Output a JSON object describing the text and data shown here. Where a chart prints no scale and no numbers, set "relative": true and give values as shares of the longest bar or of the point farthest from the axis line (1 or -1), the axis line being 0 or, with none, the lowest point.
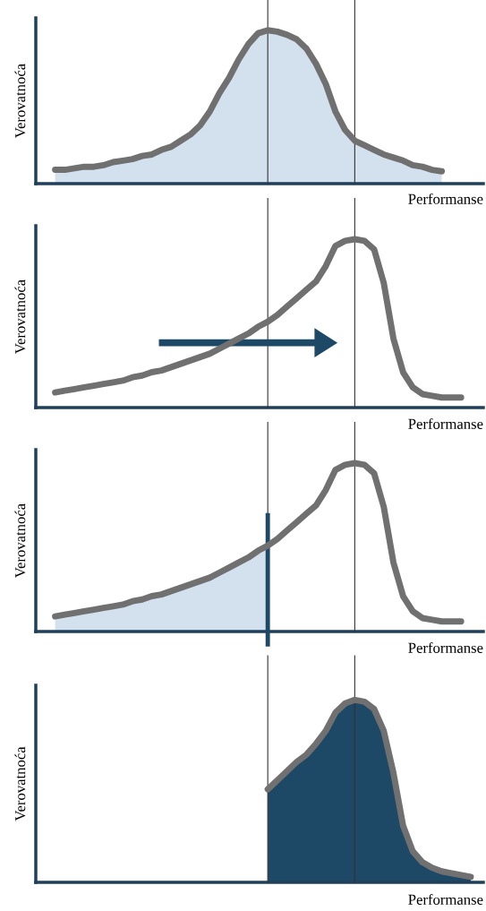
{
  "chart_data": [
    {
      "type": "line",
      "relative": true,
      "ylabel": "Verovatnoća",
      "xlabel": "Performanse",
      "categories": [
        null,
        null,
        null,
        null,
        null,
        null,
        null,
        null,
        null,
        null,
        null,
        null,
        null,
        null,
        null,
        null,
        null,
        null,
        null,
        null,
        null,
        null,
        null,
        null,
        null,
        null,
        null,
        null,
        null,
        null,
        null,
        null,
        null,
        null,
        null,
        null,
        null,
        null,
        null,
        null,
        null,
        null,
        null,
        null,
        null,
        null,
        null
      ],
      "series": [
        {
          "type": "area",
          "color": "#d3e0ee",
          "values": [
            null,
            null,
            0.09,
            0.09,
            0.1,
            0.11,
            0.11,
            0.12,
            0.14,
            0.15,
            0.16,
            0.18,
            0.19,
            0.22,
            0.24,
            0.28,
            0.32,
            0.38,
            0.47,
            0.59,
            0.69,
            0.81,
            0.91,
            0.98,
            1,
            0.99,
            0.97,
            0.94,
            0.88,
            0.78,
            0.65,
            0.47,
            0.35,
            0.28,
            0.25,
            0.22,
            0.19,
            0.17,
            0.15,
            0.12,
            0.11,
            0.09,
            0.08,
            null,
            null,
            null,
            null
          ]
        }
      ]
    },
    {
      "type": "line",
      "relative": true,
      "ylabel": "Verovatnoća",
      "xlabel": "Performanse",
      "categories": [
        null,
        null,
        null,
        null,
        null,
        null,
        null,
        null,
        null,
        null,
        null,
        null,
        null,
        null,
        null,
        null,
        null,
        null,
        null,
        null,
        null,
        null,
        null,
        null,
        null,
        null,
        null,
        null,
        null,
        null,
        null,
        null,
        null,
        null,
        null,
        null,
        null,
        null,
        null,
        null,
        null,
        null,
        null,
        null,
        null,
        null,
        null
      ],
      "series": [
        {
          "color": "#707070",
          "values": [
            null,
            null,
            0.09,
            0.1,
            0.11,
            0.12,
            0.13,
            0.14,
            0.15,
            0.16,
            0.18,
            0.19,
            0.21,
            0.22,
            0.24,
            0.26,
            0.28,
            0.3,
            0.32,
            0.35,
            0.38,
            0.41,
            0.44,
            0.48,
            0.51,
            0.55,
            0.6,
            0.65,
            0.7,
            0.75,
            0.84,
            0.96,
            0.99,
            1,
            0.99,
            0.94,
            0.74,
            0.41,
            0.21,
            0.12,
            0.08,
            0.07,
            0.06,
            0.06,
            0.06,
            null,
            null
          ]
        }
      ]
    },
    {
      "type": "line",
      "relative": true,
      "ylabel": "Verovatnoća",
      "xlabel": "Performanse",
      "categories": [
        null,
        null,
        null,
        null,
        null,
        null,
        null,
        null,
        null,
        null,
        null,
        null,
        null,
        null,
        null,
        null,
        null,
        null,
        null,
        null,
        null,
        null,
        null,
        null,
        null,
        null,
        null,
        null,
        null,
        null,
        null,
        null,
        null,
        null,
        null,
        null,
        null,
        null,
        null,
        null,
        null,
        null,
        null,
        null,
        null,
        null,
        null
      ],
      "series": [
        {
          "color": "#707070",
          "values": [
            null,
            null,
            0.09,
            0.1,
            0.11,
            0.12,
            0.13,
            0.14,
            0.15,
            0.16,
            0.18,
            0.19,
            0.21,
            0.22,
            0.24,
            0.26,
            0.28,
            0.3,
            0.32,
            0.35,
            0.38,
            0.41,
            0.44,
            0.48,
            0.51,
            0.55,
            0.6,
            0.65,
            0.7,
            0.75,
            0.84,
            0.96,
            0.99,
            1,
            0.99,
            0.94,
            0.74,
            0.41,
            0.21,
            0.12,
            0.08,
            0.07,
            0.06,
            0.06,
            0.06,
            null,
            null
          ]
        },
        {
          "type": "area",
          "color": "#d3e0ee",
          "values": [
            null,
            null,
            0.09,
            0.1,
            0.11,
            0.12,
            0.13,
            0.14,
            0.15,
            0.16,
            0.18,
            0.19,
            0.21,
            0.22,
            0.24,
            0.26,
            0.28,
            0.3,
            0.32,
            0.35,
            0.38,
            0.41,
            0.44,
            0.48,
            0.51,
            null,
            null,
            null,
            null,
            null,
            null,
            null,
            null,
            null,
            null,
            null,
            null,
            null,
            null,
            null,
            null,
            null,
            null,
            null,
            null,
            null,
            null
          ]
        }
      ]
    },
    {
      "type": "line",
      "relative": true,
      "ylabel": "Verovatnoća",
      "xlabel": "Performanse",
      "categories": [
        null,
        null,
        null,
        null,
        null,
        null,
        null,
        null,
        null,
        null,
        null,
        null,
        null,
        null,
        null,
        null,
        null,
        null,
        null,
        null,
        null,
        null,
        null,
        null,
        null,
        null,
        null,
        null,
        null,
        null,
        null,
        null,
        null,
        null,
        null,
        null,
        null,
        null,
        null,
        null,
        null,
        null,
        null,
        null,
        null,
        null,
        null
      ],
      "series": [
        {
          "type": "area",
          "color": "#1d4866",
          "values": [
            null,
            null,
            null,
            null,
            null,
            null,
            null,
            null,
            null,
            null,
            null,
            null,
            null,
            null,
            null,
            null,
            null,
            null,
            null,
            null,
            null,
            null,
            null,
            null,
            0.51,
            0.56,
            0.61,
            0.66,
            0.7,
            0.76,
            0.83,
            0.93,
            0.98,
            1,
            0.99,
            0.95,
            0.83,
            0.6,
            0.31,
            0.17,
            0.11,
            0.08,
            0.06,
            0.05,
            0.04,
            0.03,
            null
          ]
        }
      ]
    }
  ]
}
